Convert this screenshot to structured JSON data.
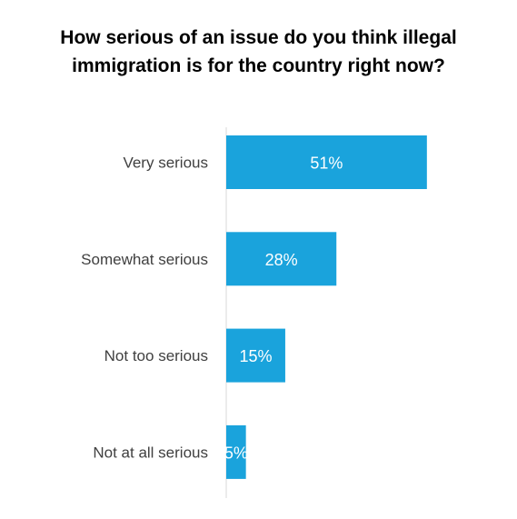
{
  "chart_data": {
    "type": "bar",
    "orientation": "horizontal",
    "title": "How serious of an issue do you think illegal immigration is for the country right now?",
    "categories": [
      "Very serious",
      "Somewhat serious",
      "Not too serious",
      "Not at all serious"
    ],
    "values": [
      51,
      28,
      15,
      5
    ],
    "value_labels": [
      "51%",
      "28%",
      "15%",
      "5%"
    ],
    "xlim": [
      0,
      100
    ],
    "grid": false,
    "legend": "none",
    "bar_color": "#1aa3dc",
    "axis_color": "#d9d9d9"
  }
}
